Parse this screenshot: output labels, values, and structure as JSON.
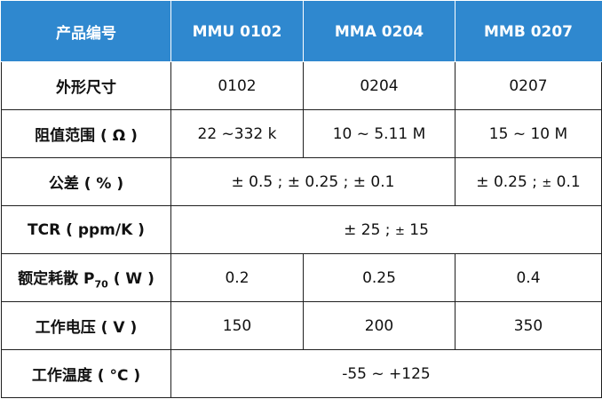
{
  "header": {
    "product_no": "产品编号",
    "models": [
      "MMU 0102",
      "MMA 0204",
      "MMB 0207"
    ]
  },
  "rows": {
    "size": {
      "label": "外形尺寸",
      "values": [
        "0102",
        "0204",
        "0207"
      ]
    },
    "resistance": {
      "label": "阻值范围 ( Ω )",
      "values": [
        "22 ~332 k",
        "10 ~ 5.11 M",
        "15 ~ 10 M"
      ]
    },
    "tolerance": {
      "label": "公差 ( % )",
      "merged_value": "± 0.5 ; ± 0.25 ; ± 0.1",
      "last_value_main": "± 0.25 ;",
      "last_value_small": "±",
      "last_value_tail": "0.1"
    },
    "tcr": {
      "label": "TCR ( ppm/K )",
      "value_main": "± 25 ;",
      "value_small": "±",
      "value_tail": "15"
    },
    "power": {
      "label_pre": "额定耗散 P",
      "label_sub": "70",
      "label_post": " ( W )",
      "values": [
        "0.2",
        "0.25",
        "0.4"
      ]
    },
    "voltage": {
      "label": "工作电压 ( V )",
      "values": [
        "150",
        "200",
        "350"
      ]
    },
    "temperature": {
      "label": "工作温度 ( °C )",
      "value": "-55 ~ +125"
    }
  },
  "colors": {
    "header_bg": "#2f88cf",
    "header_text": "#ffffff",
    "border": "#1f1f1f"
  }
}
